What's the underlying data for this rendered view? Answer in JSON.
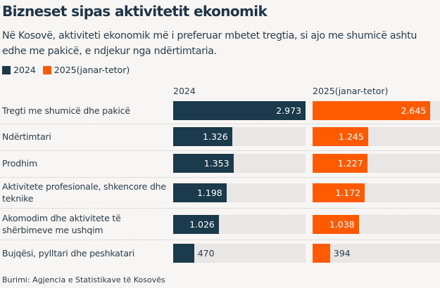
{
  "chart_data": {
    "type": "bar",
    "orientation": "horizontal",
    "title": "Bizneset sipas aktivitetit ekonomik",
    "subtitle": "Në Kosovë, aktiviteti ekonomik më i preferuar mbetet tregtia, si ajo me shumicë ashtu edhe me pakicë, e ndjekur nga ndërtimtaria.",
    "categories": [
      "Tregti me shumicë dhe pakicë",
      "Ndërtimtari",
      "Prodhim",
      "Aktivitete profesionale, shkencore dhe teknike",
      "Akomodim dhe aktivitete të shërbimeve me ushqim",
      "Bujqësi, pylltari dhe peshkatari"
    ],
    "series": [
      {
        "name": "2024",
        "color": "#1b3a4b",
        "values": [
          2973,
          1326,
          1353,
          1198,
          1026,
          470
        ],
        "labels": [
          "2.973",
          "1.326",
          "1.353",
          "1.198",
          "1.026",
          "470"
        ]
      },
      {
        "name": "2025(janar-tetor)",
        "color": "#ff5a00",
        "values": [
          2645,
          1245,
          1227,
          1172,
          1038,
          394
        ],
        "labels": [
          "2.645",
          "1.245",
          "1.227",
          "1.172",
          "1.038",
          "394"
        ]
      }
    ],
    "xlim": [
      0,
      2973
    ],
    "legend": "top-left",
    "source": "Burimi: Agjencia e Statistikave të Kosovës"
  }
}
